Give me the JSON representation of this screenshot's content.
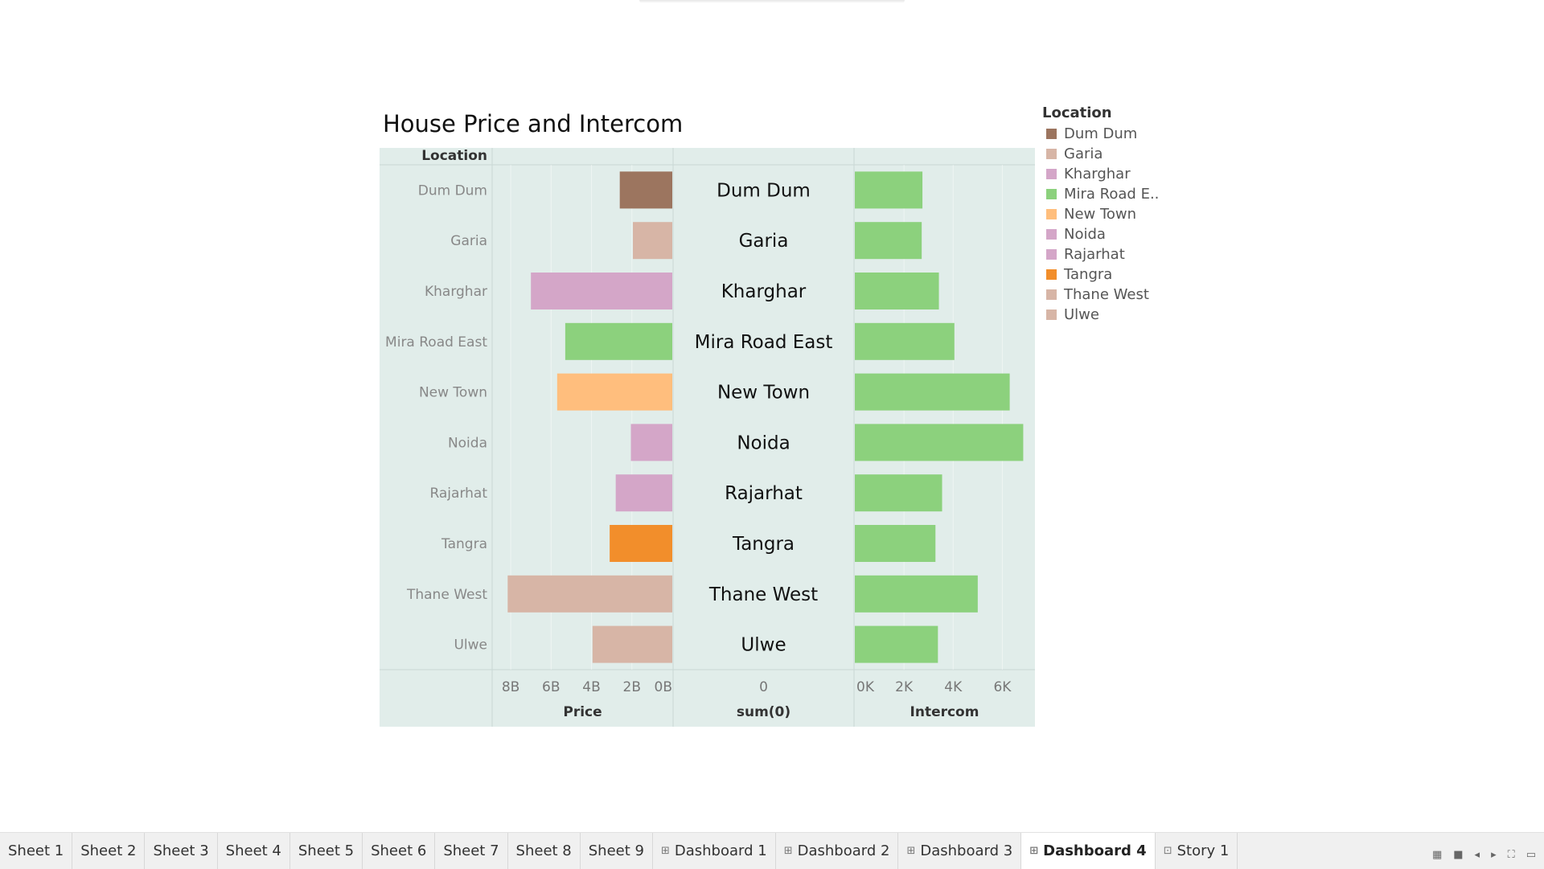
{
  "dashboard": {
    "title": "House Price and Intercom"
  },
  "chart_data": {
    "type": "bar",
    "title": "House Price and Intercom",
    "row_header": "Location",
    "categories": [
      "Dum Dum",
      "Garia",
      "Kharghar",
      "Mira Road East",
      "New Town",
      "Noida",
      "Rajarhat",
      "Tangra",
      "Thane West",
      "Ulwe"
    ],
    "bar_colors": [
      "#9c755f",
      "#d7b5a6",
      "#d4a6c8",
      "#8cd17d",
      "#ffbe7d",
      "#d4a6c8",
      "#d4a6c8",
      "#f28e2b",
      "#d7b5a6",
      "#d7b5a6"
    ],
    "intercom_color": "#8cd17d",
    "panels": [
      {
        "name": "Price",
        "xlabel": "Price",
        "reversed": true,
        "xlim": [
          0,
          8600000000
        ],
        "ticks": [
          8000000000,
          6000000000,
          4000000000,
          2000000000,
          0
        ],
        "tick_labels": [
          "8B",
          "6B",
          "4B",
          "2B",
          "0B"
        ],
        "values": [
          2600000000,
          1950000000,
          7000000000,
          5300000000,
          5700000000,
          2050000000,
          2800000000,
          3100000000,
          8150000000,
          3950000000
        ]
      },
      {
        "name": "sum(0)",
        "xlabel": "sum(0)",
        "tick_labels": [
          "0"
        ]
      },
      {
        "name": "Intercom",
        "xlabel": "Intercom",
        "reversed": false,
        "xlim": [
          0,
          7000
        ],
        "ticks": [
          0,
          2000,
          4000,
          6000
        ],
        "tick_labels": [
          "0K",
          "2K",
          "4K",
          "6K"
        ],
        "values": [
          2750,
          2720,
          3420,
          4050,
          6300,
          6850,
          3550,
          3280,
          5000,
          3380
        ]
      }
    ]
  },
  "legend": {
    "title": "Location",
    "items": [
      {
        "label": "Dum Dum",
        "color": "#9c755f"
      },
      {
        "label": "Garia",
        "color": "#d7b5a6"
      },
      {
        "label": "Kharghar",
        "color": "#d4a6c8"
      },
      {
        "label": "Mira Road E..",
        "color": "#8cd17d"
      },
      {
        "label": "New Town",
        "color": "#ffbe7d"
      },
      {
        "label": "Noida",
        "color": "#d4a6c8"
      },
      {
        "label": "Rajarhat",
        "color": "#d4a6c8"
      },
      {
        "label": "Tangra",
        "color": "#f28e2b"
      },
      {
        "label": "Thane West",
        "color": "#d7b5a6"
      },
      {
        "label": "Ulwe",
        "color": "#d7b5a6"
      }
    ]
  },
  "tabs": [
    {
      "label": "Sheet 1",
      "icon": "",
      "active": false
    },
    {
      "label": "Sheet 2",
      "icon": "",
      "active": false
    },
    {
      "label": "Sheet 3",
      "icon": "",
      "active": false
    },
    {
      "label": "Sheet 4",
      "icon": "",
      "active": false
    },
    {
      "label": "Sheet 5",
      "icon": "",
      "active": false
    },
    {
      "label": "Sheet 6",
      "icon": "",
      "active": false
    },
    {
      "label": "Sheet 7",
      "icon": "",
      "active": false
    },
    {
      "label": "Sheet 8",
      "icon": "",
      "active": false
    },
    {
      "label": "Sheet 9",
      "icon": "",
      "active": false
    },
    {
      "label": "Dashboard 1",
      "icon": "dashboard-icon",
      "active": false
    },
    {
      "label": "Dashboard 2",
      "icon": "dashboard-icon",
      "active": false
    },
    {
      "label": "Dashboard 3",
      "icon": "dashboard-icon",
      "active": false
    },
    {
      "label": "Dashboard 4",
      "icon": "dashboard-icon",
      "active": true
    },
    {
      "label": "Story 1",
      "icon": "story-icon",
      "active": false
    }
  ],
  "tab_tools": [
    "show-sheet-sorter-icon",
    "show-filmstrip-icon",
    "prev-sheet-icon",
    "next-sheet-icon",
    "fit-icon",
    "presentation-mode-icon"
  ]
}
